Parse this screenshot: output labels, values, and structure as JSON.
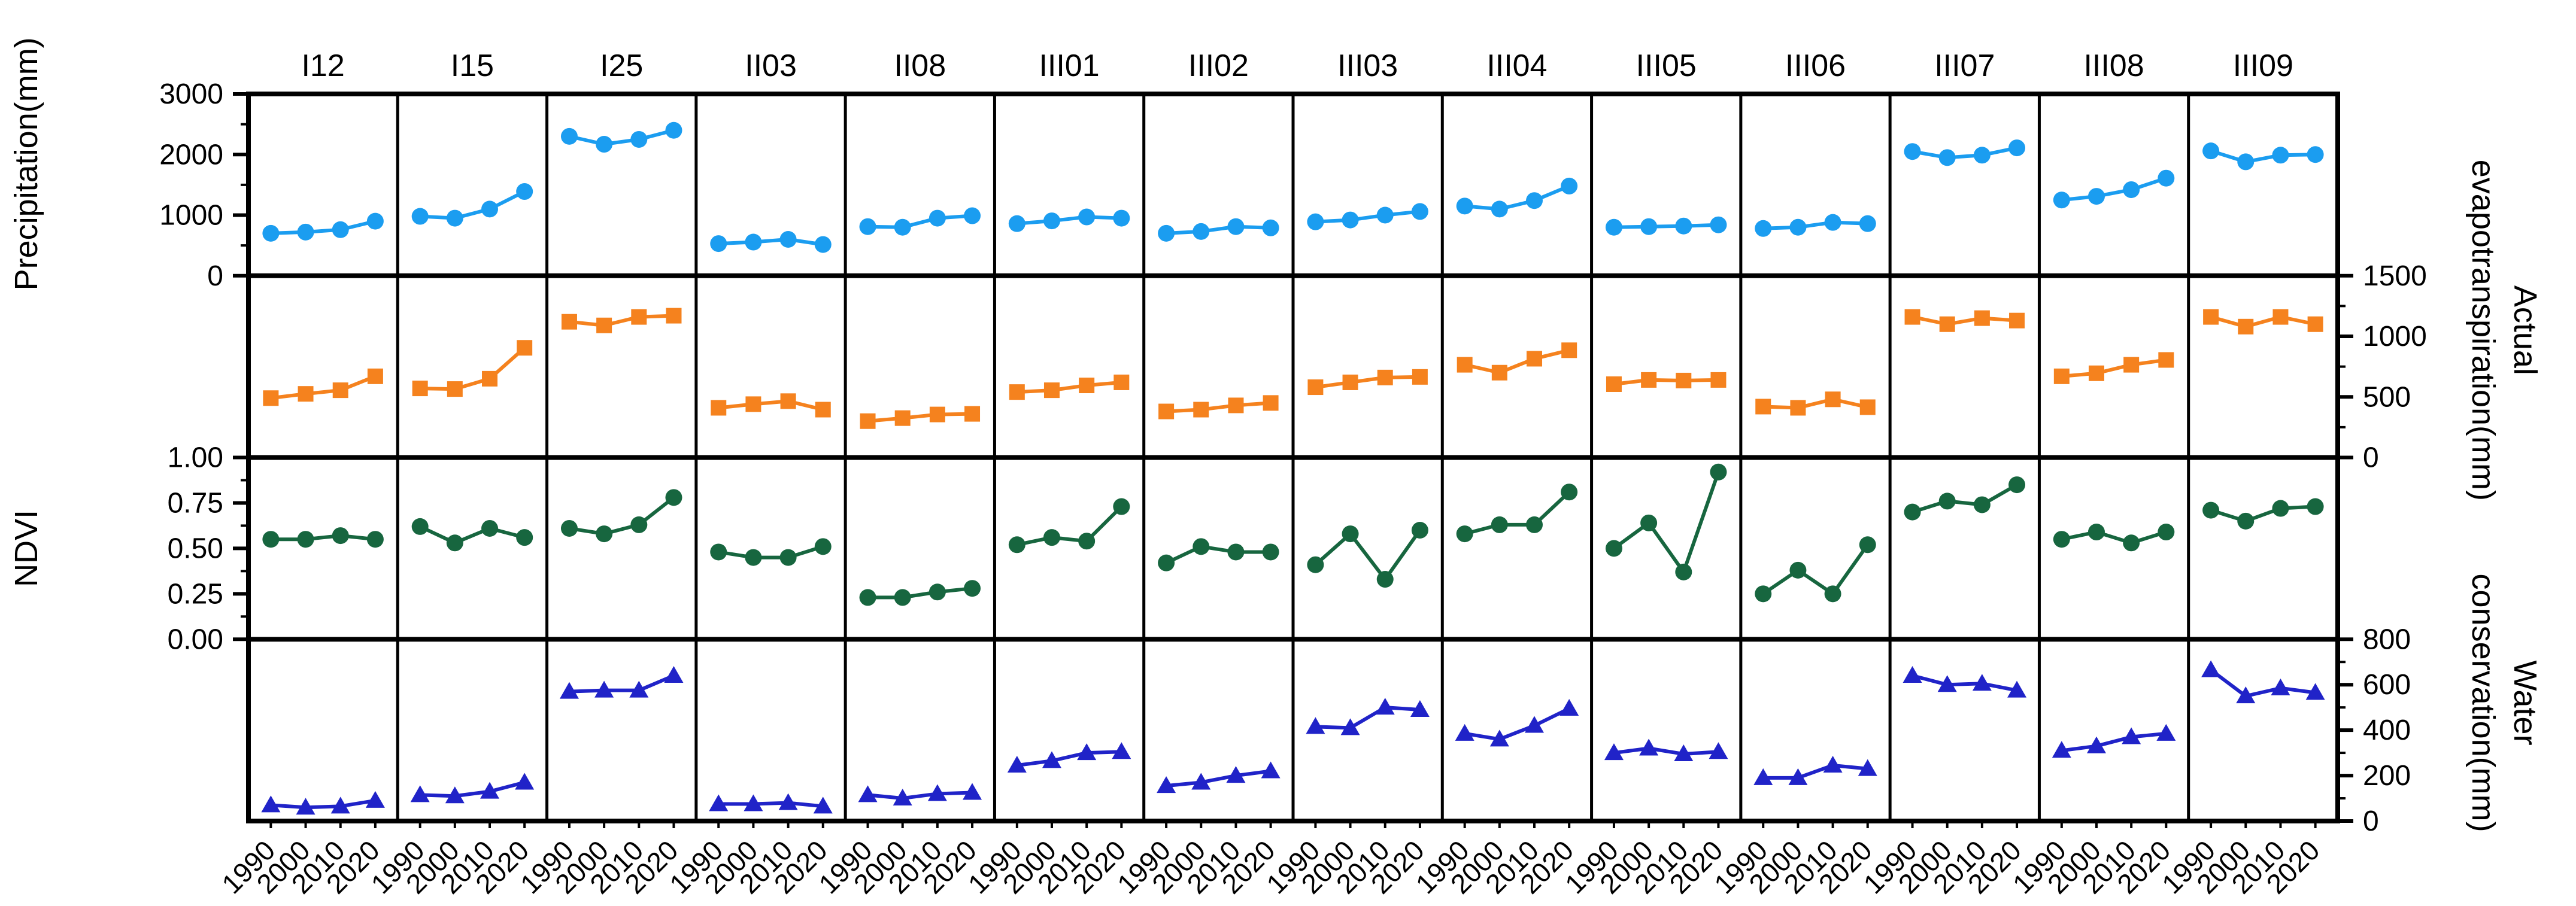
{
  "chart_data": {
    "type": "line",
    "layout": "small_multiples",
    "grid": {
      "rows": 4,
      "cols": 14
    },
    "x": [
      1990,
      2000,
      2010,
      2020
    ],
    "x_tick_labels": [
      "1990",
      "2000",
      "2010",
      "2020"
    ],
    "columns": [
      "I12",
      "I15",
      "I25",
      "II03",
      "II08",
      "III01",
      "III02",
      "III03",
      "III04",
      "III05",
      "III06",
      "III07",
      "III08",
      "III09"
    ],
    "frame_color": "#000000",
    "rows": [
      {
        "key": "precipitation",
        "axis_label": "Precipitation(mm)",
        "axis_label_lines": [
          "Precipitation(mm)"
        ],
        "axis_side": "left",
        "marker": "circle",
        "color": "#1B9DF0",
        "ylim": [
          0,
          3000
        ],
        "yticks": [
          0,
          1000,
          2000,
          3000
        ],
        "ytick_labels": [
          "0",
          "1000",
          "2000",
          "3000"
        ],
        "minor_step": 500,
        "series": {
          "I12": [
            700,
            720,
            760,
            900
          ],
          "I15": [
            980,
            950,
            1100,
            1390
          ],
          "I25": [
            2300,
            2170,
            2250,
            2400
          ],
          "II03": [
            530,
            555,
            600,
            515
          ],
          "II08": [
            810,
            800,
            950,
            990
          ],
          "III01": [
            860,
            905,
            970,
            950
          ],
          "III02": [
            700,
            730,
            810,
            790
          ],
          "III03": [
            890,
            920,
            1000,
            1060
          ],
          "III04": [
            1150,
            1100,
            1240,
            1480
          ],
          "III05": [
            800,
            810,
            820,
            840
          ],
          "III06": [
            780,
            800,
            880,
            860
          ],
          "III07": [
            2050,
            1950,
            1990,
            2110
          ],
          "III08": [
            1250,
            1310,
            1420,
            1610
          ],
          "III09": [
            2060,
            1880,
            1990,
            2000
          ]
        }
      },
      {
        "key": "actual_evapotranspiration",
        "axis_label": "Actual evapotranspiration(mm)",
        "axis_label_lines": [
          "Actual",
          "evapotranspiration(mm)"
        ],
        "axis_side": "right",
        "marker": "square",
        "color": "#F5821E",
        "ylim": [
          0,
          1500
        ],
        "yticks": [
          0,
          500,
          1000,
          1500
        ],
        "ytick_labels": [
          "0",
          "500",
          "1000",
          "1500"
        ],
        "minor_step": 250,
        "series": {
          "I12": [
            490,
            525,
            555,
            670
          ],
          "I15": [
            570,
            565,
            650,
            905
          ],
          "I25": [
            1120,
            1090,
            1160,
            1170
          ],
          "II03": [
            410,
            440,
            465,
            395
          ],
          "II08": [
            300,
            325,
            355,
            360
          ],
          "III01": [
            540,
            555,
            595,
            620
          ],
          "III02": [
            380,
            395,
            430,
            450
          ],
          "III03": [
            580,
            620,
            660,
            665
          ],
          "III04": [
            765,
            700,
            815,
            885
          ],
          "III05": [
            605,
            640,
            635,
            640
          ],
          "III06": [
            420,
            410,
            480,
            415
          ],
          "III07": [
            1160,
            1100,
            1150,
            1130
          ],
          "III08": [
            670,
            695,
            765,
            805
          ],
          "III09": [
            1160,
            1080,
            1160,
            1100
          ]
        }
      },
      {
        "key": "ndvi",
        "axis_label": "NDVI",
        "axis_label_lines": [
          "NDVI"
        ],
        "axis_side": "left",
        "marker": "circle",
        "color": "#17663F",
        "ylim": [
          0,
          1
        ],
        "yticks": [
          0,
          0.25,
          0.5,
          0.75,
          1
        ],
        "ytick_labels": [
          "0.00",
          "0.25",
          "0.50",
          "0.75",
          "1.00"
        ],
        "minor_step": 0.125,
        "series": {
          "I12": [
            0.55,
            0.55,
            0.57,
            0.55
          ],
          "I15": [
            0.62,
            0.53,
            0.61,
            0.56
          ],
          "I25": [
            0.61,
            0.58,
            0.63,
            0.78
          ],
          "II03": [
            0.48,
            0.45,
            0.45,
            0.51
          ],
          "II08": [
            0.23,
            0.23,
            0.26,
            0.28
          ],
          "III01": [
            0.52,
            0.56,
            0.54,
            0.73
          ],
          "III02": [
            0.42,
            0.51,
            0.48,
            0.48
          ],
          "III03": [
            0.41,
            0.58,
            0.33,
            0.6
          ],
          "III04": [
            0.58,
            0.63,
            0.63,
            0.81
          ],
          "III05": [
            0.5,
            0.64,
            0.37,
            0.92
          ],
          "III06": [
            0.25,
            0.38,
            0.25,
            0.52
          ],
          "III07": [
            0.7,
            0.76,
            0.74,
            0.85
          ],
          "III08": [
            0.55,
            0.59,
            0.53,
            0.59
          ],
          "III09": [
            0.71,
            0.65,
            0.72,
            0.73
          ]
        }
      },
      {
        "key": "water_conservation",
        "axis_label": "Water conservation(mm)",
        "axis_label_lines": [
          "Water",
          "conservation(mm)"
        ],
        "axis_side": "right",
        "marker": "triangle",
        "color": "#2023C8",
        "ylim": [
          0,
          800
        ],
        "yticks": [
          0,
          200,
          400,
          600,
          800
        ],
        "ytick_labels": [
          "0",
          "200",
          "400",
          "600",
          "800"
        ],
        "minor_step": 100,
        "series": {
          "I12": [
            70,
            60,
            65,
            90
          ],
          "I15": [
            115,
            110,
            130,
            170
          ],
          "I25": [
            570,
            575,
            575,
            640
          ],
          "II03": [
            75,
            75,
            80,
            65
          ],
          "II08": [
            115,
            100,
            120,
            125
          ],
          "III01": [
            245,
            265,
            300,
            305
          ],
          "III02": [
            155,
            170,
            200,
            220
          ],
          "III03": [
            415,
            410,
            500,
            490
          ],
          "III04": [
            385,
            360,
            420,
            495
          ],
          "III05": [
            300,
            320,
            295,
            305
          ],
          "III06": [
            190,
            190,
            245,
            230
          ],
          "III07": [
            640,
            600,
            605,
            575
          ],
          "III08": [
            310,
            330,
            370,
            385
          ],
          "III09": [
            665,
            550,
            585,
            565
          ]
        }
      }
    ]
  }
}
